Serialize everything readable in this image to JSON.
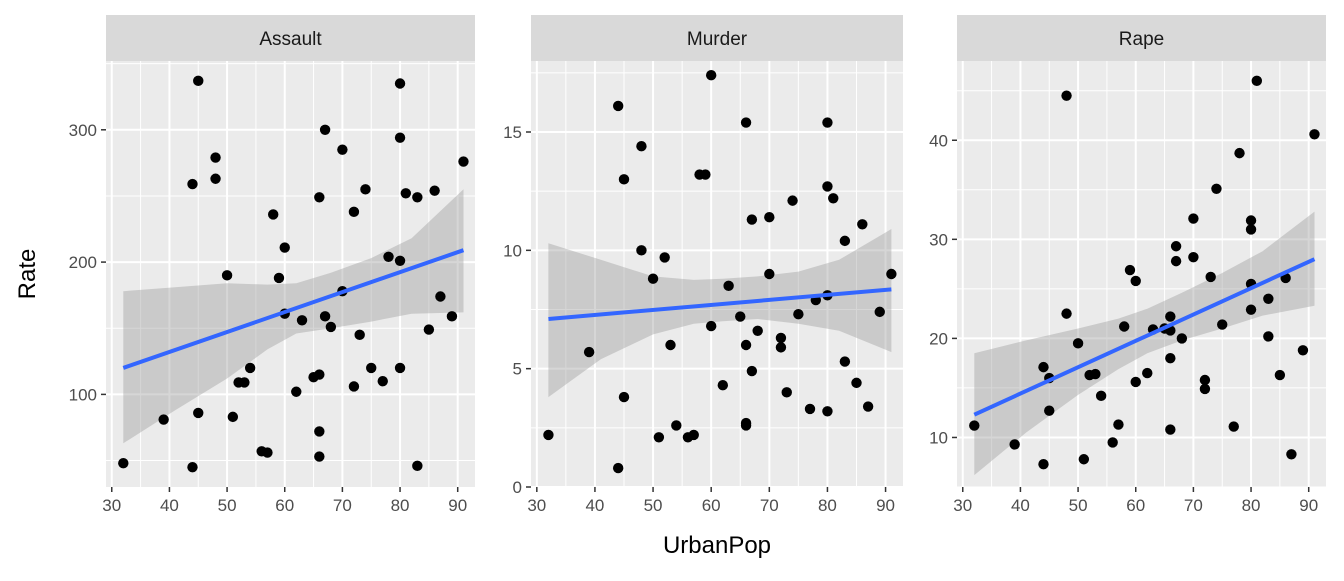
{
  "chart_data": {
    "type": "scatter",
    "layout": "facet_wrap",
    "xlabel": "UrbanPop",
    "ylabel": "Rate",
    "x_ticks": [
      30,
      40,
      50,
      60,
      70,
      80,
      90
    ],
    "xlim": [
      29,
      93
    ],
    "grid": true,
    "smoother": "linear fit with confidence band",
    "colors": {
      "panel_bg": "#ebebeb",
      "grid": "#ffffff",
      "strip_bg": "#d9d9d9",
      "point": "#000000",
      "fit_line": "#3366ff",
      "ribbon": "#999999"
    },
    "facets": [
      {
        "name": "Assault",
        "ylim": [
          30,
          352
        ],
        "y_ticks": [
          100,
          200,
          300
        ],
        "fit": {
          "x": [
            32,
            91
          ],
          "y": [
            120,
            209
          ]
        },
        "band": {
          "x": [
            32,
            41,
            50,
            57,
            62,
            68,
            75,
            82,
            91
          ],
          "upper": [
            178,
            181,
            184,
            183,
            184,
            192,
            203,
            218,
            255
          ],
          "lower": [
            63,
            88,
            112,
            134,
            146,
            150,
            155,
            161,
            162
          ]
        },
        "points": [
          [
            32,
            48
          ],
          [
            39,
            81
          ],
          [
            44,
            259
          ],
          [
            44,
            45
          ],
          [
            45,
            337
          ],
          [
            45,
            86
          ],
          [
            48,
            279
          ],
          [
            48,
            263
          ],
          [
            50,
            190
          ],
          [
            51,
            83
          ],
          [
            52,
            109
          ],
          [
            53,
            109
          ],
          [
            54,
            120
          ],
          [
            56,
            57
          ],
          [
            57,
            56
          ],
          [
            58,
            236
          ],
          [
            59,
            188
          ],
          [
            60,
            211
          ],
          [
            60,
            161
          ],
          [
            62,
            102
          ],
          [
            63,
            156
          ],
          [
            65,
            113
          ],
          [
            66,
            249
          ],
          [
            66,
            115
          ],
          [
            66,
            72
          ],
          [
            66,
            53
          ],
          [
            67,
            300
          ],
          [
            67,
            159
          ],
          [
            68,
            151
          ],
          [
            70,
            285
          ],
          [
            70,
            178
          ],
          [
            72,
            238
          ],
          [
            72,
            106
          ],
          [
            73,
            145
          ],
          [
            74,
            255
          ],
          [
            75,
            120
          ],
          [
            77,
            110
          ],
          [
            78,
            204
          ],
          [
            80,
            335
          ],
          [
            80,
            294
          ],
          [
            80,
            201
          ],
          [
            80,
            120
          ],
          [
            81,
            252
          ],
          [
            83,
            249
          ],
          [
            83,
            46
          ],
          [
            85,
            149
          ],
          [
            86,
            254
          ],
          [
            87,
            174
          ],
          [
            89,
            159
          ],
          [
            91,
            276
          ]
        ]
      },
      {
        "name": "Murder",
        "ylim": [
          0,
          18
        ],
        "y_ticks": [
          0,
          5,
          10,
          15
        ],
        "fit": {
          "x": [
            32,
            91
          ],
          "y": [
            7.1,
            8.35
          ]
        },
        "band": {
          "x": [
            32,
            41,
            50,
            57,
            62,
            68,
            75,
            82,
            91
          ],
          "upper": [
            10.3,
            9.6,
            8.9,
            8.75,
            8.8,
            8.9,
            9.1,
            9.6,
            10.9
          ],
          "lower": [
            3.8,
            5.4,
            6.45,
            6.9,
            7.0,
            7.1,
            6.9,
            6.6,
            5.7
          ]
        },
        "points": [
          [
            32,
            2.2
          ],
          [
            39,
            5.7
          ],
          [
            44,
            16.1
          ],
          [
            44,
            0.8
          ],
          [
            45,
            13.0
          ],
          [
            45,
            3.8
          ],
          [
            48,
            14.4
          ],
          [
            48,
            10.0
          ],
          [
            50,
            8.8
          ],
          [
            51,
            2.1
          ],
          [
            52,
            9.7
          ],
          [
            53,
            6.0
          ],
          [
            54,
            2.6
          ],
          [
            56,
            2.1
          ],
          [
            57,
            2.2
          ],
          [
            58,
            13.2
          ],
          [
            59,
            13.2
          ],
          [
            60,
            17.4
          ],
          [
            60,
            6.8
          ],
          [
            62,
            4.3
          ],
          [
            63,
            8.5
          ],
          [
            65,
            7.2
          ],
          [
            66,
            15.4
          ],
          [
            66,
            6.0
          ],
          [
            66,
            2.7
          ],
          [
            66,
            2.6
          ],
          [
            67,
            11.3
          ],
          [
            67,
            4.9
          ],
          [
            68,
            6.6
          ],
          [
            70,
            11.4
          ],
          [
            70,
            9.0
          ],
          [
            72,
            6.3
          ],
          [
            72,
            5.9
          ],
          [
            73,
            4.0
          ],
          [
            74,
            12.1
          ],
          [
            75,
            7.3
          ],
          [
            77,
            3.3
          ],
          [
            78,
            7.9
          ],
          [
            80,
            15.4
          ],
          [
            80,
            12.7
          ],
          [
            80,
            8.1
          ],
          [
            80,
            3.2
          ],
          [
            81,
            12.2
          ],
          [
            83,
            10.4
          ],
          [
            83,
            5.3
          ],
          [
            85,
            4.4
          ],
          [
            86,
            11.1
          ],
          [
            87,
            3.4
          ],
          [
            89,
            7.4
          ],
          [
            91,
            9.0
          ]
        ]
      },
      {
        "name": "Rape",
        "ylim": [
          5,
          48
        ],
        "y_ticks": [
          10,
          20,
          30,
          40
        ],
        "fit": {
          "x": [
            32,
            91
          ],
          "y": [
            12.3,
            28.0
          ]
        },
        "band": {
          "x": [
            32,
            41,
            50,
            57,
            62,
            68,
            75,
            82,
            91
          ],
          "upper": [
            18.5,
            19.8,
            21.0,
            22.0,
            23.0,
            24.6,
            26.6,
            28.8,
            32.8
          ],
          "lower": [
            6.2,
            10.5,
            14.3,
            16.9,
            18.5,
            19.8,
            21.0,
            22.3,
            23.3
          ]
        },
        "points": [
          [
            32,
            11.2
          ],
          [
            39,
            9.3
          ],
          [
            44,
            7.3
          ],
          [
            44,
            17.1
          ],
          [
            45,
            16.0
          ],
          [
            45,
            12.7
          ],
          [
            48,
            44.5
          ],
          [
            48,
            22.5
          ],
          [
            50,
            19.5
          ],
          [
            51,
            7.8
          ],
          [
            52,
            16.3
          ],
          [
            53,
            16.4
          ],
          [
            54,
            14.2
          ],
          [
            56,
            9.5
          ],
          [
            57,
            11.3
          ],
          [
            58,
            21.2
          ],
          [
            59,
            26.9
          ],
          [
            60,
            25.8
          ],
          [
            60,
            15.6
          ],
          [
            62,
            16.5
          ],
          [
            63,
            20.9
          ],
          [
            65,
            21.0
          ],
          [
            66,
            22.2
          ],
          [
            66,
            18.0
          ],
          [
            66,
            10.8
          ],
          [
            66,
            20.8
          ],
          [
            67,
            29.3
          ],
          [
            67,
            27.8
          ],
          [
            68,
            20.0
          ],
          [
            70,
            32.1
          ],
          [
            70,
            28.2
          ],
          [
            72,
            15.8
          ],
          [
            72,
            14.9
          ],
          [
            73,
            26.2
          ],
          [
            74,
            35.1
          ],
          [
            75,
            21.4
          ],
          [
            77,
            11.1
          ],
          [
            78,
            38.7
          ],
          [
            80,
            31.9
          ],
          [
            80,
            31.0
          ],
          [
            80,
            25.5
          ],
          [
            80,
            22.9
          ],
          [
            81,
            46.0
          ],
          [
            83,
            24.0
          ],
          [
            83,
            20.2
          ],
          [
            85,
            16.3
          ],
          [
            86,
            26.1
          ],
          [
            87,
            8.3
          ],
          [
            89,
            18.8
          ],
          [
            91,
            40.6
          ]
        ]
      }
    ]
  }
}
